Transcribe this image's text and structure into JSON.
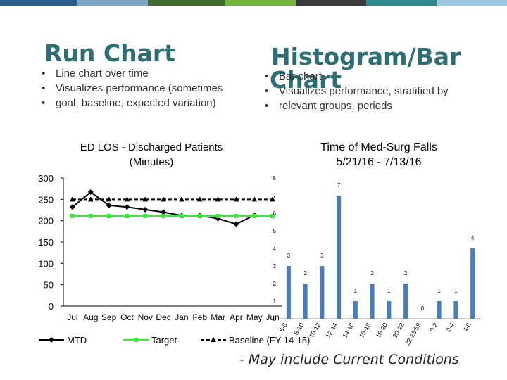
{
  "top_bar_colors": [
    "#2b5d8a",
    "#7aa6c8",
    "#3f6b30",
    "#72b43c",
    "#3a3a3a",
    "#2f8a8f",
    "#9ac8e0"
  ],
  "left": {
    "title": "Run Chart",
    "bullets": [
      "Line chart over time",
      "Visualizes performance (sometimes",
      "goal, baseline, expected variation)"
    ]
  },
  "right": {
    "title_line1": "Histogram/Bar",
    "title_line2": "Chart",
    "bullets": [
      "Bar chart",
      "Visualizes performance, stratified by",
      "relevant groups, periods"
    ]
  },
  "footnote": "-  May include Current Conditions",
  "chart_data": [
    {
      "type": "line",
      "title_line1": "ED LOS - Discharged Patients",
      "title_line2": "(Minutes)",
      "categories": [
        "Jul",
        "Aug",
        "Sep",
        "Oct",
        "Nov",
        "Dec",
        "Jan",
        "Feb",
        "Mar",
        "Apr",
        "May",
        "Jun"
      ],
      "ylim": [
        0,
        300
      ],
      "yticks": [
        "0",
        "50",
        "100",
        "150",
        "200",
        "250",
        "300"
      ],
      "series": [
        {
          "name": "MTD",
          "color": "#000000",
          "marker": "diamond",
          "values": [
            232,
            267,
            236,
            232,
            226,
            220,
            212,
            212,
            205,
            192,
            213,
            null
          ]
        },
        {
          "name": "Target",
          "color": "#33ee33",
          "marker": "square",
          "values": [
            211,
            211,
            211,
            211,
            211,
            211,
            211,
            211,
            211,
            211,
            211,
            211
          ]
        },
        {
          "name": "Baseline (FY 14-15)",
          "color": "#000000",
          "marker": "triangle",
          "dashed": true,
          "values": [
            250,
            250,
            250,
            250,
            250,
            250,
            250,
            250,
            250,
            250,
            250,
            250
          ]
        }
      ]
    },
    {
      "type": "bar",
      "title_line1": "Time of Med-Surg Falls",
      "title_line2": "5/21/16 - 7/13/16",
      "categories": [
        "6-8",
        "8-10",
        "10-12",
        "12-14",
        "14-16",
        "16-18",
        "18-20",
        "20-22",
        "22-23:59",
        "0-2",
        "2-4",
        "4-6"
      ],
      "values": [
        3,
        2,
        3,
        7,
        1,
        2,
        1,
        2,
        0,
        1,
        1,
        4
      ],
      "value_labels": [
        "3",
        "2",
        "3",
        "7",
        "1",
        "2",
        "1",
        "2",
        "0",
        "1",
        "1",
        "4"
      ],
      "ylim": [
        0,
        8
      ],
      "yticks": [
        "0",
        "1",
        "2",
        "3",
        "4",
        "5",
        "6",
        "7",
        "8"
      ],
      "bar_color": "#4a7ebb"
    }
  ]
}
